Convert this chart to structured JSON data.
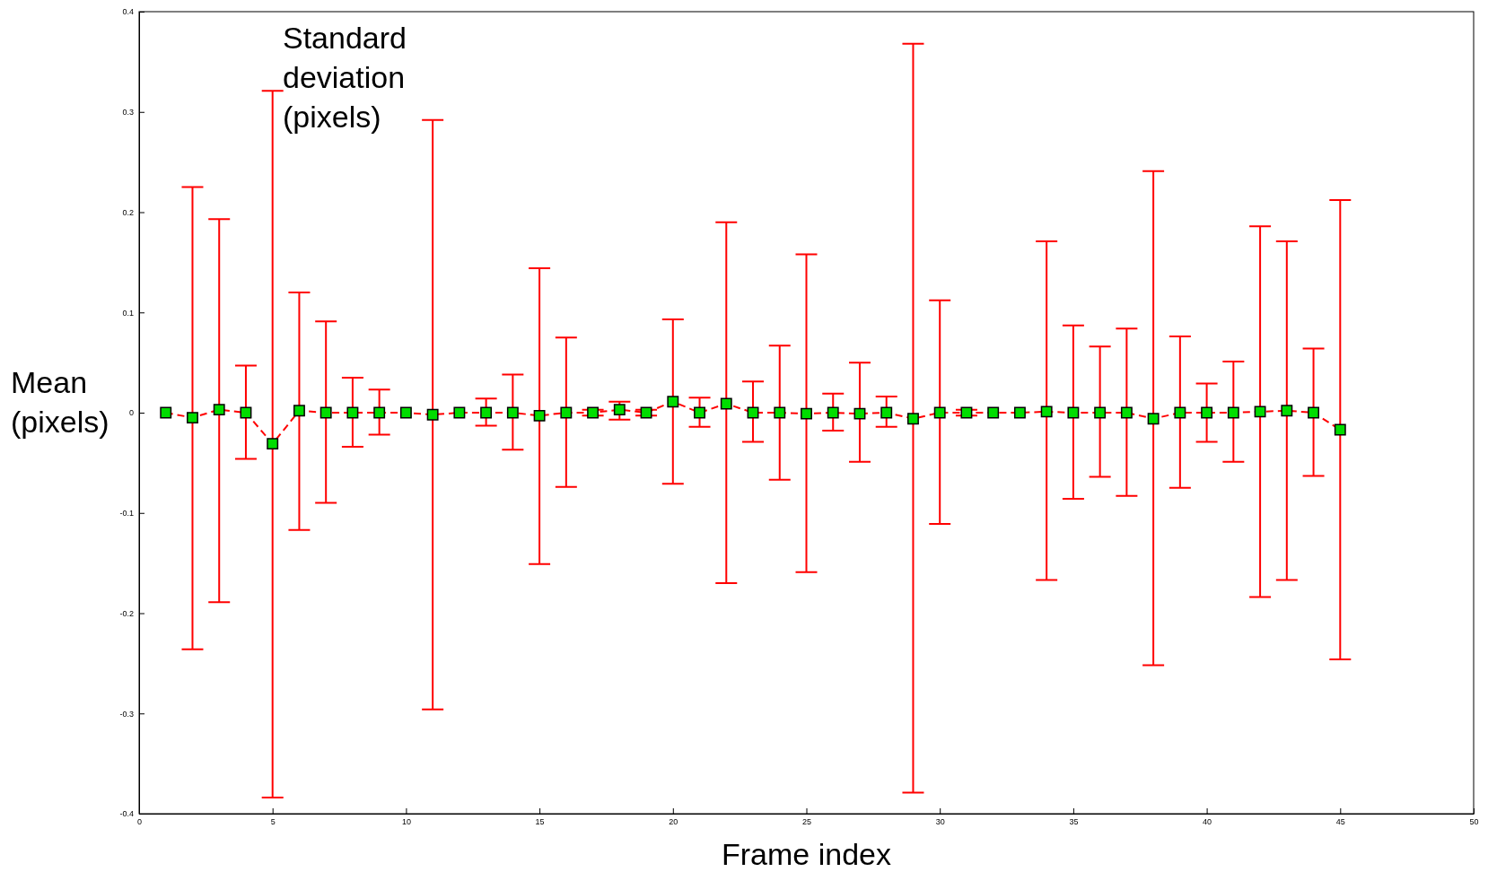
{
  "chart_data": {
    "type": "line",
    "xlabel": "Frame index",
    "ylabel": "Mean (pixels)",
    "annotations": [
      "Standard deviation (pixels)"
    ],
    "xlim": [
      0,
      50
    ],
    "xticks": [
      0,
      5,
      10,
      15,
      20,
      25,
      30,
      35,
      40,
      45,
      50
    ],
    "ylim": [
      -0.4,
      0.4
    ],
    "yticks": [
      -0.4,
      -0.3,
      -0.2,
      -0.1,
      0,
      0.1,
      0.2,
      0.3,
      0.4
    ],
    "marker": "square",
    "line_style": "dashed",
    "grid": false,
    "series": [
      {
        "color": "#00dd00",
        "x": [
          1,
          2,
          3,
          4,
          5,
          6,
          7,
          8,
          9,
          10,
          11,
          12,
          13,
          14,
          15,
          16,
          17,
          18,
          19,
          20,
          21,
          22,
          23,
          24,
          25,
          26,
          27,
          28,
          29,
          30,
          31,
          32,
          33,
          34,
          35,
          36,
          37,
          38,
          39,
          40,
          41,
          42,
          43,
          44,
          45
        ],
        "values": [
          0,
          -0.005,
          0.003,
          0,
          -0.031,
          0.002,
          0,
          0,
          0,
          0,
          -0.002,
          0,
          0,
          0,
          -0.003,
          0,
          0,
          0.003,
          0,
          0.011,
          0,
          0.009,
          0,
          0,
          -0.001,
          0,
          -0.001,
          0,
          -0.006,
          0,
          0,
          0,
          0,
          0.001,
          0,
          0,
          0,
          -0.006,
          0,
          0,
          0,
          0.001,
          0.002,
          0,
          -0.017
        ],
        "errors": [
          null,
          [
            -0.236,
            0.225
          ],
          [
            -0.189,
            0.193
          ],
          [
            -0.046,
            0.047
          ],
          [
            -0.384,
            0.321
          ],
          [
            -0.117,
            0.12
          ],
          [
            -0.09,
            0.091
          ],
          [
            -0.034,
            0.035
          ],
          [
            -0.022,
            0.023
          ],
          null,
          [
            -0.296,
            0.292
          ],
          null,
          [
            -0.013,
            0.014
          ],
          [
            -0.037,
            0.038
          ],
          [
            -0.151,
            0.144
          ],
          [
            -0.074,
            0.075
          ],
          [
            -0.003,
            0.003
          ],
          [
            -0.007,
            0.011
          ],
          [
            -0.003,
            0.003
          ],
          [
            -0.071,
            0.093
          ],
          [
            -0.014,
            0.015
          ],
          [
            -0.17,
            0.19
          ],
          [
            -0.029,
            0.031
          ],
          [
            -0.067,
            0.067
          ],
          [
            -0.159,
            0.158
          ],
          [
            -0.018,
            0.019
          ],
          [
            -0.049,
            0.05
          ],
          [
            -0.014,
            0.016
          ],
          [
            -0.379,
            0.368
          ],
          [
            -0.111,
            0.112
          ],
          [
            -0.003,
            0.003
          ],
          null,
          null,
          [
            -0.167,
            0.171
          ],
          [
            -0.086,
            0.087
          ],
          [
            -0.064,
            0.066
          ],
          [
            -0.083,
            0.084
          ],
          [
            -0.252,
            0.241
          ],
          [
            -0.075,
            0.076
          ],
          [
            -0.029,
            0.029
          ],
          [
            -0.049,
            0.051
          ],
          [
            -0.184,
            0.186
          ],
          [
            -0.167,
            0.171
          ],
          [
            -0.063,
            0.064
          ],
          [
            -0.246,
            0.212
          ]
        ]
      }
    ]
  }
}
